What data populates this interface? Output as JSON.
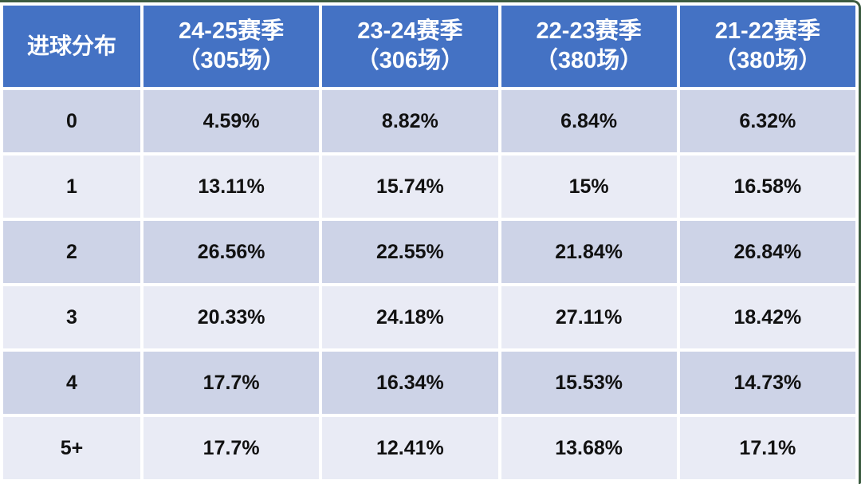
{
  "table": {
    "corner_label": "进球分布",
    "columns": [
      {
        "line1": "24-25赛季",
        "line2": "（305场）"
      },
      {
        "line1": "23-24赛季",
        "line2": "（306场）"
      },
      {
        "line1": "22-23赛季",
        "line2": "（380场）"
      },
      {
        "line1": "21-22赛季",
        "line2": "（380场）"
      }
    ],
    "rows": [
      {
        "label": "0",
        "values": [
          "4.59%",
          "8.82%",
          "6.84%",
          "6.32%"
        ]
      },
      {
        "label": "1",
        "values": [
          "13.11%",
          "15.74%",
          "15%",
          "16.58%"
        ]
      },
      {
        "label": "2",
        "values": [
          "26.56%",
          "22.55%",
          "21.84%",
          "26.84%"
        ]
      },
      {
        "label": "3",
        "values": [
          "20.33%",
          "24.18%",
          "27.11%",
          "18.42%"
        ]
      },
      {
        "label": "4",
        "values": [
          "17.7%",
          "16.34%",
          "15.53%",
          "14.73%"
        ]
      },
      {
        "label": "5+",
        "values": [
          "17.7%",
          "12.41%",
          "13.68%",
          "17.1%"
        ]
      }
    ],
    "colors": {
      "header_bg": "#4472C4",
      "header_text": "#FFFFFF",
      "row_dark_bg": "#CDD3E7",
      "row_light_bg": "#E9EBF5",
      "body_text": "#111111",
      "frame_border": "#3D5C41"
    }
  },
  "chart_data": {
    "type": "table",
    "title": "进球分布",
    "categories": [
      "0",
      "1",
      "2",
      "3",
      "4",
      "5+"
    ],
    "series": [
      {
        "name": "24-25赛季（305场）",
        "values": [
          4.59,
          13.11,
          26.56,
          20.33,
          17.7,
          17.7
        ]
      },
      {
        "name": "23-24赛季（306场）",
        "values": [
          8.82,
          15.74,
          22.55,
          24.18,
          16.34,
          12.41
        ]
      },
      {
        "name": "22-23赛季（380场）",
        "values": [
          6.84,
          15.0,
          21.84,
          27.11,
          15.53,
          13.68
        ]
      },
      {
        "name": "21-22赛季（380场）",
        "values": [
          6.32,
          16.58,
          26.84,
          18.42,
          14.73,
          17.1
        ]
      }
    ],
    "value_unit": "%",
    "layout": "rows are goal counts, columns are seasons"
  }
}
